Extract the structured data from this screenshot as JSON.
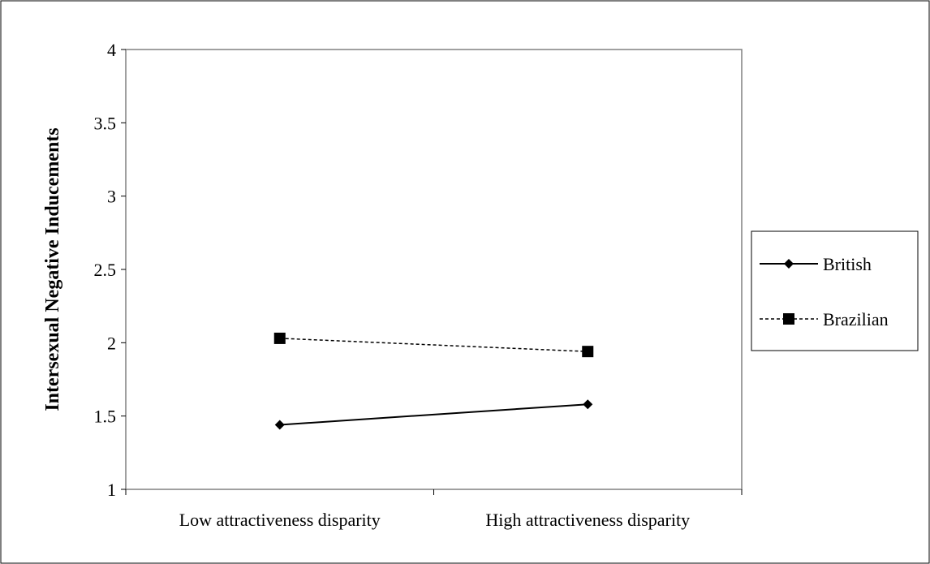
{
  "chart_data": {
    "type": "line",
    "title": "",
    "xlabel": "",
    "ylabel": "Intersexual Negative Inducements",
    "categories": [
      "Low attractiveness disparity",
      "High attractiveness disparity"
    ],
    "ylim": [
      1,
      4
    ],
    "yticks": [
      1,
      1.5,
      2,
      2.5,
      3,
      3.5,
      4
    ],
    "ytick_labels": [
      "1",
      "1.5",
      "2",
      "2.5",
      "3",
      "3.5",
      "4"
    ],
    "grid": false,
    "legend_position": "right",
    "series": [
      {
        "name": "British",
        "values": [
          1.44,
          1.58
        ],
        "color": "#000000",
        "line_style": "solid",
        "marker": "diamond"
      },
      {
        "name": "Brazilian",
        "values": [
          2.03,
          1.94
        ],
        "color": "#000000",
        "line_style": "dashed",
        "marker": "square"
      }
    ]
  }
}
